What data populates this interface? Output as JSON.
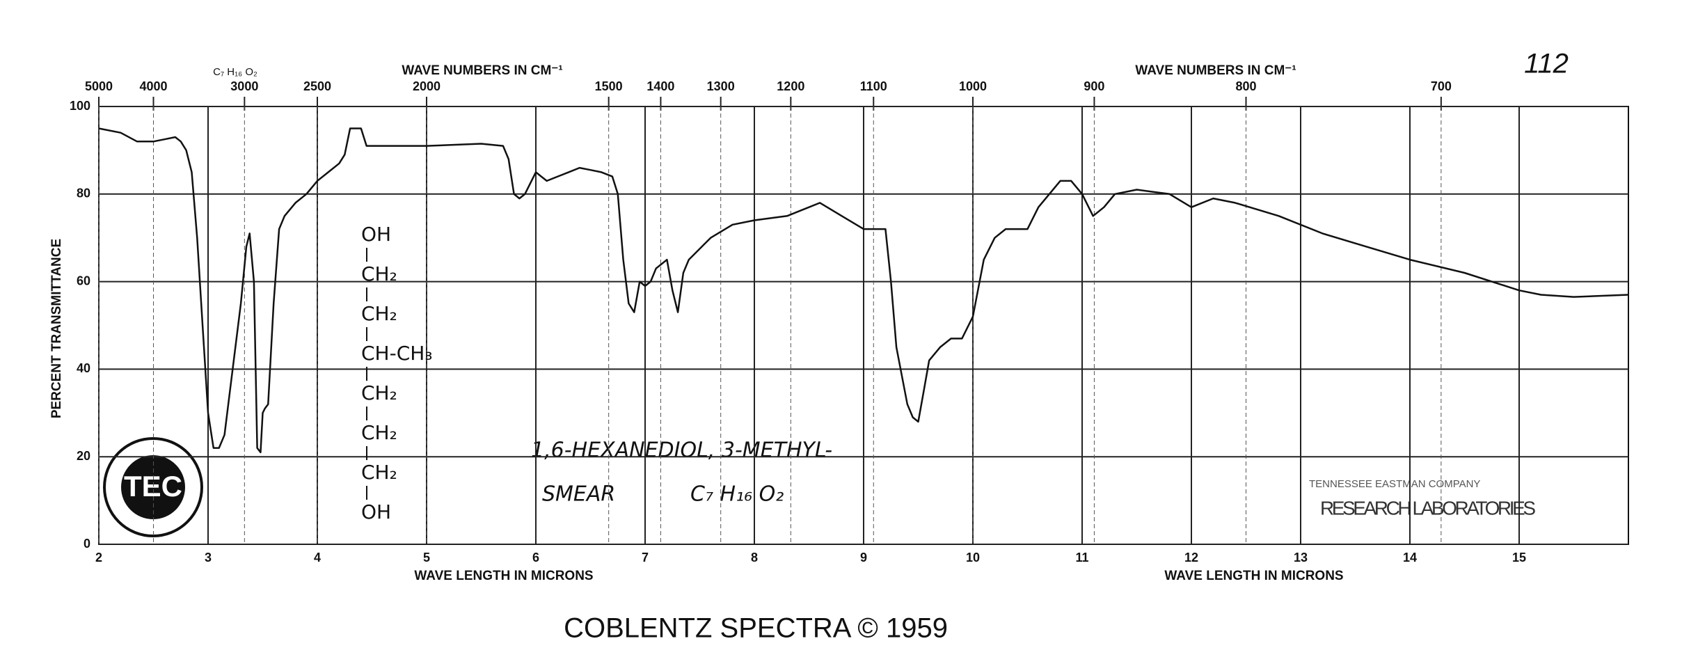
{
  "chart_data": {
    "type": "line",
    "page_number": "112",
    "formula_top": "C₇ H₁₆ O₂",
    "x_label": "WAVE LENGTH IN MICRONS",
    "x2_label": "WAVE NUMBERS IN CM⁻¹",
    "y_label": "PERCENT TRANSMITTANCE",
    "footer": "COBLENTZ SPECTRA © 1959",
    "structure": [
      "OH",
      "CH₂",
      "CH₂",
      "CH-CH₃",
      "CH₂",
      "CH₂",
      "CH₂",
      "OH"
    ],
    "compound": "1,6-HEXANEDIOL, 3-METHYL-",
    "sample": "SMEAR",
    "formula": "C₇ H₁₆ O₂",
    "stamp": [
      "TENNESSEE EASTMAN COMPANY",
      "RESEARCH LABORATORIES"
    ],
    "logo": "TEC",
    "color": "#111111",
    "grid": true,
    "xlim": [
      2,
      16
    ],
    "ylim": [
      0,
      100
    ],
    "xticks": [
      2,
      3,
      4,
      5,
      6,
      7,
      8,
      9,
      10,
      11,
      12,
      13,
      14,
      15
    ],
    "yticks": [
      0,
      20,
      40,
      60,
      80,
      100
    ],
    "x2ticks": [
      5000,
      4000,
      3000,
      2500,
      2000,
      1500,
      1400,
      1300,
      1200,
      1100,
      1000,
      900,
      800,
      700
    ],
    "x": [
      2.0,
      2.2,
      2.35,
      2.5,
      2.6,
      2.7,
      2.75,
      2.8,
      2.85,
      2.9,
      2.95,
      3.0,
      3.05,
      3.1,
      3.15,
      3.2,
      3.3,
      3.35,
      3.38,
      3.42,
      3.45,
      3.48,
      3.5,
      3.52,
      3.55,
      3.6,
      3.65,
      3.7,
      3.8,
      3.9,
      4.0,
      4.1,
      4.2,
      4.25,
      4.3,
      4.35,
      4.4,
      4.45,
      4.6,
      5.0,
      5.5,
      5.7,
      5.75,
      5.8,
      5.85,
      5.9,
      6.0,
      6.05,
      6.1,
      6.2,
      6.3,
      6.4,
      6.5,
      6.6,
      6.7,
      6.75,
      6.8,
      6.85,
      6.9,
      6.95,
      7.0,
      7.05,
      7.1,
      7.2,
      7.25,
      7.3,
      7.35,
      7.4,
      7.6,
      7.8,
      8.0,
      8.3,
      8.5,
      8.6,
      8.8,
      9.0,
      9.2,
      9.25,
      9.3,
      9.4,
      9.45,
      9.5,
      9.55,
      9.6,
      9.7,
      9.8,
      9.9,
      10.0,
      10.1,
      10.2,
      10.3,
      10.5,
      10.6,
      10.7,
      10.8,
      10.9,
      11.0,
      11.1,
      11.2,
      11.3,
      11.5,
      11.8,
      12.0,
      12.2,
      12.4,
      12.8,
      13.2,
      13.6,
      14.0,
      14.5,
      15.0,
      15.2,
      15.5,
      16.0
    ],
    "values": [
      95,
      94,
      92,
      92,
      92.5,
      93,
      92,
      90,
      85,
      70,
      50,
      30,
      22,
      22,
      25,
      35,
      55,
      68,
      71,
      60,
      22,
      21,
      30,
      31,
      32,
      55,
      72,
      75,
      78,
      80,
      83,
      85,
      87,
      89,
      95,
      95,
      95,
      91,
      91,
      91,
      91.5,
      91,
      88,
      80,
      79,
      80,
      85,
      84,
      83,
      84,
      85,
      86,
      85.5,
      85,
      84,
      80,
      65,
      55,
      53,
      60,
      59,
      60,
      63,
      65,
      58,
      53,
      62,
      65,
      70,
      73,
      74,
      75,
      77,
      78,
      75,
      72,
      72,
      60,
      45,
      32,
      29,
      28,
      35,
      42,
      45,
      47,
      47,
      52,
      65,
      70,
      72,
      72,
      77,
      80,
      83,
      83,
      80,
      75,
      77,
      80,
      81,
      80,
      77,
      79,
      78,
      75,
      71,
      68,
      65,
      62,
      58,
      57,
      56.5,
      57
    ]
  }
}
